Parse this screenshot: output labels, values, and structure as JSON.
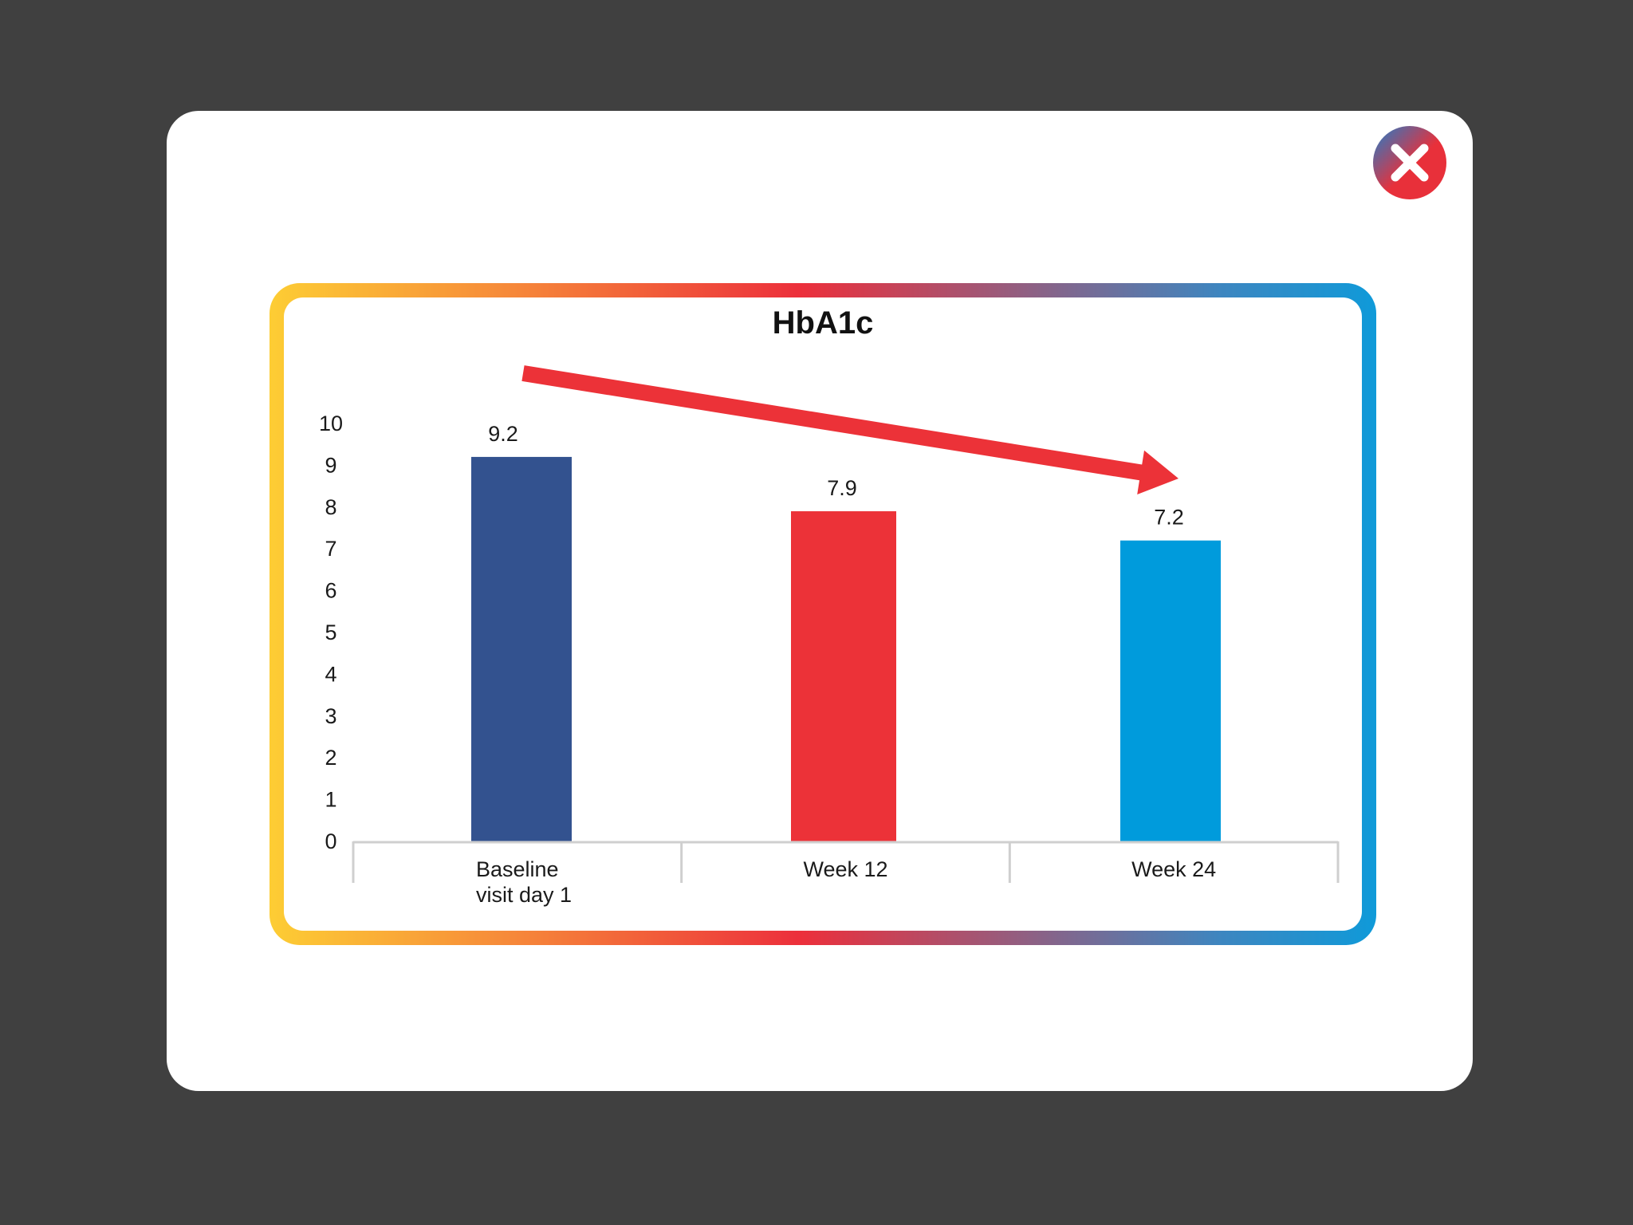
{
  "modal": {
    "close_icon": "close-x-icon"
  },
  "colors": {
    "backdrop": "#404040",
    "bar_baseline": "#33528f",
    "bar_week12": "#ec3238",
    "bar_week24": "#009bdc",
    "trend_arrow": "#ec3238",
    "frame_gradient_start": "#fdcd34",
    "frame_gradient_end": "#0f9ad9"
  },
  "chart_data": {
    "type": "bar",
    "title": "HbA1c",
    "xlabel": "",
    "ylabel": "",
    "ylim": [
      0,
      10
    ],
    "yticks": [
      0,
      1,
      2,
      3,
      4,
      5,
      6,
      7,
      8,
      9,
      10
    ],
    "grid": false,
    "legend": "none",
    "categories": [
      [
        "Baseline",
        "visit day 1"
      ],
      [
        "Week 12"
      ],
      [
        "Week 24"
      ]
    ],
    "values": [
      9.2,
      7.9,
      7.2
    ],
    "data_labels": [
      "9.2",
      "7.9",
      "7.2"
    ],
    "annotations": [
      {
        "type": "arrow",
        "meaning": "downward trend",
        "from_category": 0,
        "to_category": 2
      }
    ]
  }
}
